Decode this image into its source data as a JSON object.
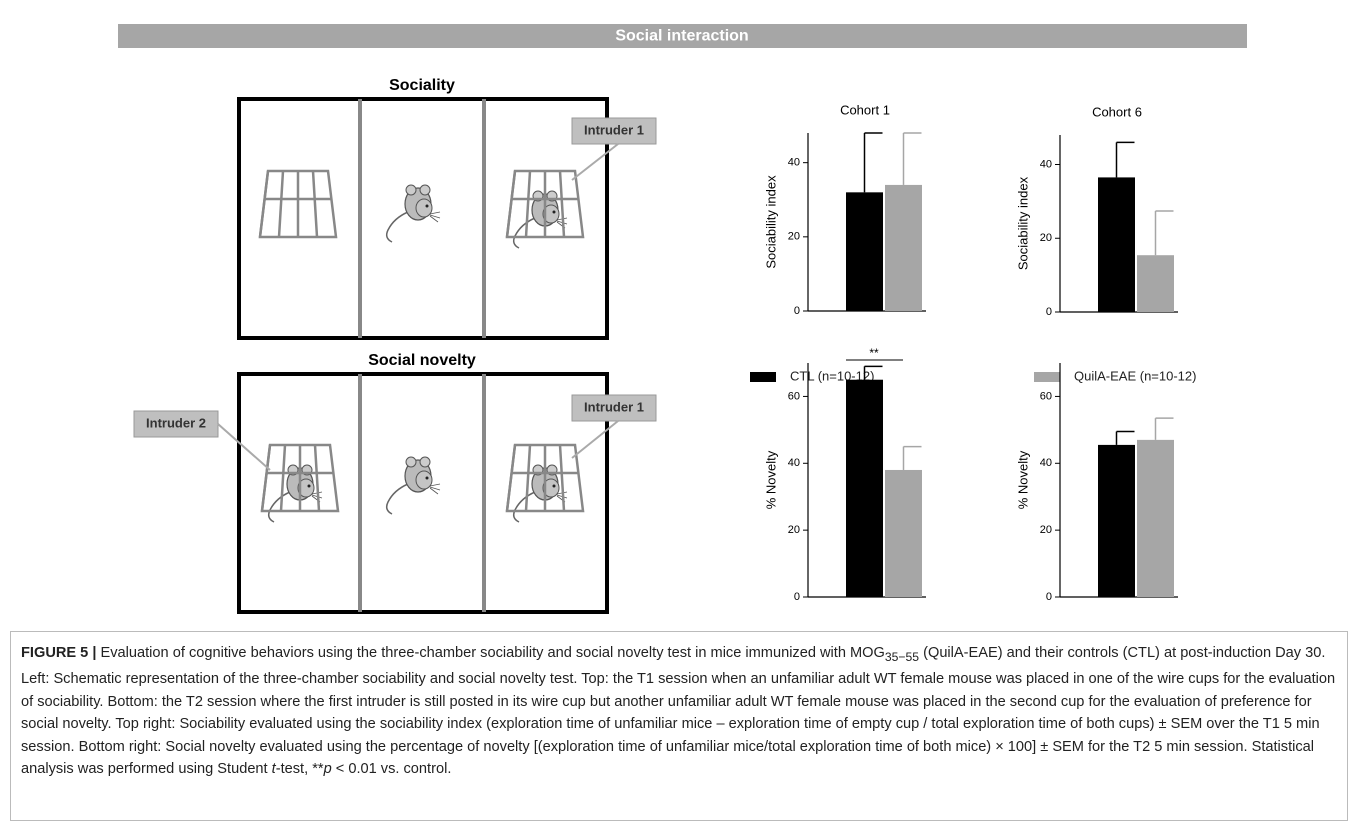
{
  "header": {
    "title": "Social interaction"
  },
  "diagram": {
    "sociality": {
      "title": "Sociality",
      "intruder_right": "Intruder 1"
    },
    "social_novelty": {
      "title": "Social novelty",
      "intruder_left": "Intruder 2",
      "intruder_right": "Intruder 1"
    }
  },
  "legend": [
    {
      "name": "CTL (n=10-12)",
      "color": "#000000"
    },
    {
      "name": "QuilA-EAE (n=10-12)",
      "color": "#a6a6a6"
    }
  ],
  "chart_data": [
    {
      "type": "bar",
      "title": "Cohort 1",
      "y_label": "Sociability index",
      "values": [
        32,
        34
      ],
      "errors": [
        16,
        14
      ],
      "ylim": [
        0,
        48
      ],
      "yticks": [
        0,
        20,
        40
      ]
    },
    {
      "type": "bar",
      "title": "Cohort 6",
      "y_label": "Sociability index",
      "values": [
        36.5,
        15.4
      ],
      "errors": [
        9.5,
        12
      ],
      "ylim": [
        0,
        48
      ],
      "yticks": [
        0,
        20,
        40
      ]
    },
    {
      "type": "bar",
      "y_label": "% Novelty",
      "values": [
        65,
        38
      ],
      "errors": [
        4,
        7
      ],
      "ylim": [
        0,
        70
      ],
      "yticks": [
        0,
        20,
        40,
        60
      ],
      "annotation": "**"
    },
    {
      "type": "bar",
      "y_label": "% Novelty",
      "values": [
        45.5,
        47
      ],
      "errors": [
        4,
        6.5
      ],
      "ylim": [
        0,
        70
      ],
      "yticks": [
        0,
        20,
        40,
        60
      ]
    }
  ],
  "caption": {
    "label": "FIGURE 5 |",
    "text_1": " Evaluation of cognitive behaviors using the three-chamber sociability and social novelty test in mice immunized with MOG",
    "sub": "35−55",
    "text_2": " (QuilA-EAE) and their controls (CTL) at post-induction Day 30. Left: Schematic representation of the three-chamber sociability and social novelty test. Top: the T1 session when an unfamiliar adult WT female mouse was placed in one of the wire cups for the evaluation of sociability. Bottom: the T2 session where the first intruder is still posted in its wire cup but another unfamiliar adult WT female mouse was placed in the second cup for the evaluation of preference for social novelty. Top right: Sociability evaluated using the sociability index (exploration time of unfamiliar mice – exploration time of empty cup / total exploration time of both cups) ± SEM over the T1 5 min session. Bottom right: Social novelty evaluated using the percentage of novelty [(exploration time of unfamiliar mice/total exploration time of both mice) × 100] ± SEM for the T2 5 min session. Statistical analysis was performed using Student ",
    "italic_t": "t",
    "text_3": "-test, **",
    "italic_p": "p",
    "text_4": " < 0.01 vs. control."
  }
}
